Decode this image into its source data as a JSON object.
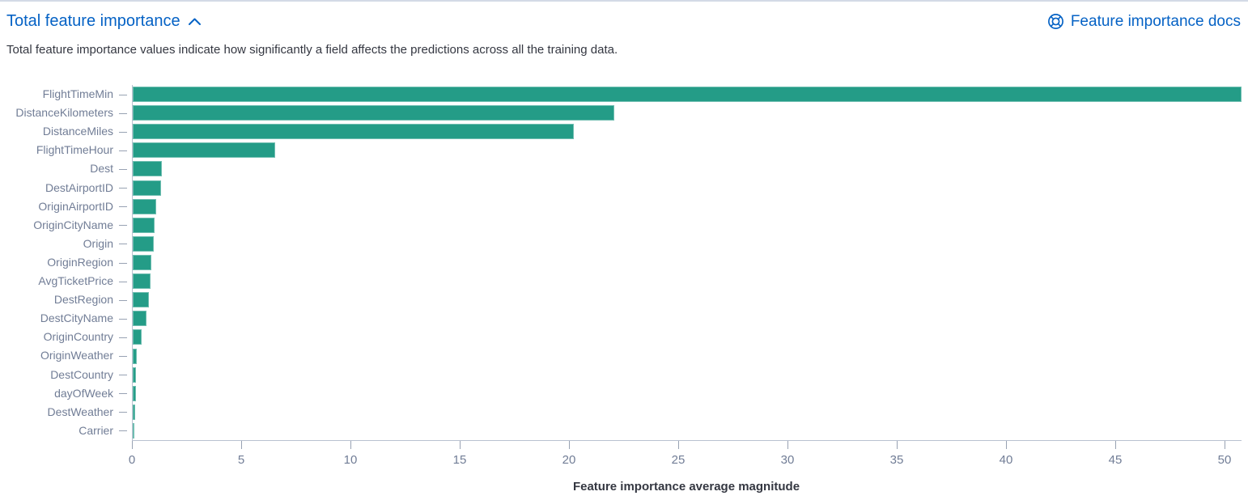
{
  "header": {
    "title": "Total feature importance",
    "collapse_icon": "chevron-up",
    "docs_link_label": "Feature importance docs",
    "docs_icon": "documentation-lifering"
  },
  "description": "Total feature importance values indicate how significantly a field affects the predictions across all the training data.",
  "colors": {
    "bar": "#249C87",
    "link": "#0562C5",
    "axis_line": "#b9c1d0",
    "tick": "#98A2B3",
    "label": "#717D96",
    "text": "#343741",
    "top_border": "#D3DAE6",
    "background": "#FFFFFF"
  },
  "chart_data": {
    "type": "bar",
    "orientation": "horizontal",
    "title": "",
    "categories": [
      "FlightTimeMin",
      "DistanceKilometers",
      "DistanceMiles",
      "FlightTimeHour",
      "Dest",
      "DestAirportID",
      "OriginAirportID",
      "OriginCityName",
      "Origin",
      "OriginRegion",
      "AvgTicketPrice",
      "DestRegion",
      "DestCityName",
      "OriginCountry",
      "OriginWeather",
      "DestCountry",
      "dayOfWeek",
      "DestWeather",
      "Carrier"
    ],
    "values": [
      50.74,
      22.05,
      20.2,
      6.5,
      1.33,
      1.3,
      1.07,
      0.99,
      0.95,
      0.86,
      0.83,
      0.74,
      0.63,
      0.41,
      0.19,
      0.15,
      0.15,
      0.11,
      0.05
    ],
    "xlabel": "Feature importance average magnitude",
    "ylabel": "",
    "x_ticks": [
      0,
      5,
      10,
      15,
      20,
      25,
      30,
      35,
      40,
      45,
      50
    ],
    "xlim": [
      0,
      50.74
    ],
    "grid": false,
    "legend": false
  }
}
